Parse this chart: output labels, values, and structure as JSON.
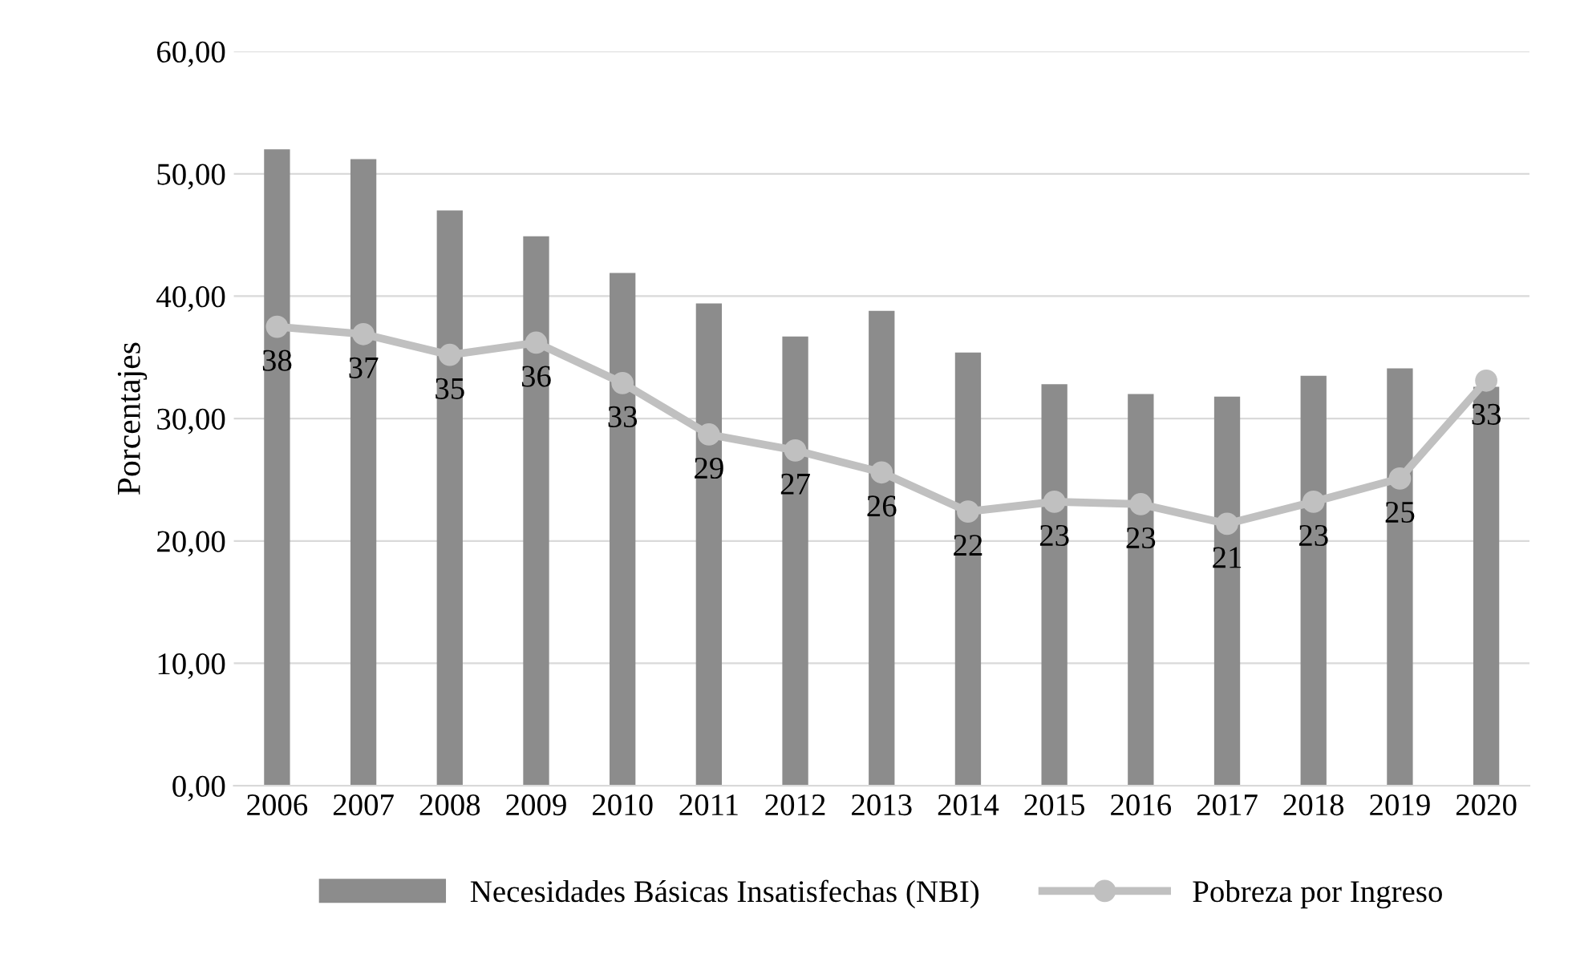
{
  "chart_data": {
    "type": "bar",
    "ylabel": "Porcentajes",
    "categories": [
      "2006",
      "2007",
      "2008",
      "2009",
      "2010",
      "2011",
      "2012",
      "2013",
      "2014",
      "2015",
      "2016",
      "2017",
      "2018",
      "2019",
      "2020"
    ],
    "series": [
      {
        "name": "Necesidades Básicas Insatisfechas (NBI)",
        "color": "#8c8c8c",
        "values": [
          52.0,
          51.2,
          47.0,
          44.9,
          41.9,
          39.4,
          36.7,
          38.8,
          35.4,
          32.8,
          32.0,
          31.8,
          33.5,
          34.1,
          32.6
        ]
      },
      {
        "name": "Pobreza por Ingreso",
        "type": "line",
        "color": "#c0c0c0",
        "marker": "circle",
        "line_style": "solid",
        "values": [
          37.5,
          36.9,
          35.2,
          36.2,
          32.9,
          28.7,
          27.4,
          25.6,
          22.4,
          23.2,
          23.0,
          21.4,
          23.2,
          25.1,
          33.1
        ],
        "value_labels": [
          "38",
          "37",
          "35",
          "36",
          "33",
          "29",
          "27",
          "26",
          "22",
          "23",
          "23",
          "21",
          "23",
          "25",
          "33"
        ]
      }
    ],
    "ylim": [
      0,
      60
    ],
    "yticks": [
      {
        "value": 0,
        "label": "0,00"
      },
      {
        "value": 10,
        "label": "10,00"
      },
      {
        "value": 20,
        "label": "20,00"
      },
      {
        "value": 30,
        "label": "30,00"
      },
      {
        "value": 40,
        "label": "40,00"
      },
      {
        "value": 50,
        "label": "50,00"
      },
      {
        "value": 60,
        "label": "60,00"
      }
    ],
    "grid": "y",
    "legend": "bottom"
  }
}
